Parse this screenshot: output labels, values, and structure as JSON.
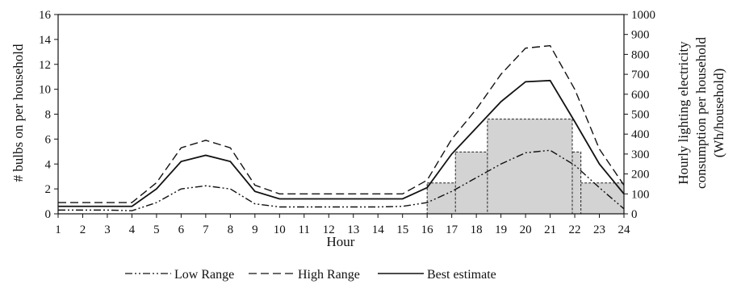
{
  "chart_data": {
    "type": "line",
    "x": [
      1,
      2,
      3,
      4,
      5,
      6,
      7,
      8,
      9,
      10,
      11,
      12,
      13,
      14,
      15,
      16,
      17,
      18,
      19,
      20,
      21,
      22,
      23,
      24
    ],
    "xlabel": "Hour",
    "ylabel": "# bulbs on  per household",
    "y2label_lines": [
      "Hourly lighting electricity",
      "consumption per household",
      "(Wh/household)"
    ],
    "ylim": [
      0,
      16
    ],
    "y2lim": [
      0,
      1000
    ],
    "yticks": [
      0,
      2,
      4,
      6,
      8,
      10,
      12,
      14,
      16
    ],
    "y2ticks": [
      0,
      100,
      200,
      300,
      400,
      500,
      600,
      700,
      800,
      900,
      1000
    ],
    "grid": false,
    "legend_position": "bottom",
    "series": [
      {
        "name": "Low Range",
        "style": "dash-dot-dot",
        "values": [
          0.3,
          0.3,
          0.3,
          0.25,
          0.9,
          2.0,
          2.25,
          2.0,
          0.8,
          0.55,
          0.55,
          0.55,
          0.55,
          0.55,
          0.6,
          0.9,
          1.8,
          2.9,
          4.0,
          4.9,
          5.1,
          3.9,
          2.1,
          0.4
        ]
      },
      {
        "name": "High Range",
        "style": "dashed",
        "values": [
          0.9,
          0.9,
          0.9,
          0.9,
          2.5,
          5.3,
          5.9,
          5.3,
          2.3,
          1.6,
          1.6,
          1.6,
          1.6,
          1.6,
          1.6,
          2.7,
          6.0,
          8.4,
          11.2,
          13.3,
          13.5,
          10.0,
          5.2,
          2.3
        ]
      },
      {
        "name": "Best estimate",
        "style": "solid",
        "values": [
          0.6,
          0.6,
          0.6,
          0.6,
          2.0,
          4.2,
          4.7,
          4.2,
          1.8,
          1.2,
          1.2,
          1.2,
          1.2,
          1.2,
          1.2,
          2.1,
          4.8,
          6.9,
          9.0,
          10.6,
          10.7,
          7.4,
          4.0,
          1.6
        ]
      }
    ],
    "consumption_boxes_wh": [
      {
        "x_start": 16,
        "x_end": 24,
        "value": 155
      },
      {
        "x_start": 17.15,
        "x_end": 22.25,
        "value": 310
      },
      {
        "x_start": 18.45,
        "x_end": 21.9,
        "value": 475
      }
    ],
    "colors": {
      "line": "#111111",
      "box_fill": "#d3d3d3",
      "box_stroke": "#222222"
    }
  }
}
